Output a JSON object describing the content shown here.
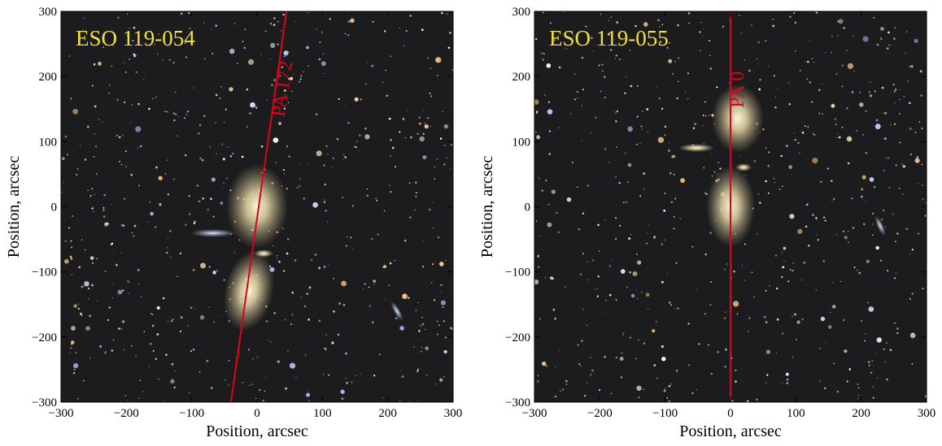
{
  "chart_data": [
    {
      "type": "image",
      "title": "ESO 119-054",
      "annotation": "PA 172",
      "xlabel": "Position, arcsec",
      "ylabel": "Position, arcsec",
      "xlim": [
        -300,
        300
      ],
      "ylim": [
        -300,
        300
      ],
      "xticks": [
        {
          "value": -300,
          "label": "−300"
        },
        {
          "value": -200,
          "label": "−200"
        },
        {
          "value": -100,
          "label": "−100"
        },
        0,
        100,
        200,
        300
      ],
      "yticks": [
        {
          "value": -300,
          "label": "−300"
        },
        {
          "value": -200,
          "label": "−200"
        },
        {
          "value": -100,
          "label": "−100"
        },
        0,
        100,
        200,
        300
      ],
      "title_color": "#f0e040",
      "line": {
        "x": [
          -40,
          45
        ],
        "y": [
          -300,
          300
        ],
        "color": "#e0001a"
      }
    },
    {
      "type": "image",
      "title": "ESO 119-055",
      "annotation": "PA 0",
      "xlabel": "Position, arcsec",
      "ylabel": "Position, arcsec",
      "xlim": [
        -300,
        300
      ],
      "ylim": [
        -300,
        300
      ],
      "xticks": [
        {
          "value": -300,
          "label": "−300"
        },
        {
          "value": -200,
          "label": "−200"
        },
        {
          "value": -100,
          "label": "−100"
        },
        0,
        100,
        200,
        300
      ],
      "yticks": [
        {
          "value": -300,
          "label": "−300"
        },
        {
          "value": -200,
          "label": "−200"
        },
        {
          "value": -100,
          "label": "−100"
        },
        0,
        100,
        200,
        300
      ],
      "title_color": "#f0e040",
      "line": {
        "x": [
          0,
          0
        ],
        "y": [
          -300,
          300
        ],
        "color": "#e0001a"
      }
    }
  ]
}
